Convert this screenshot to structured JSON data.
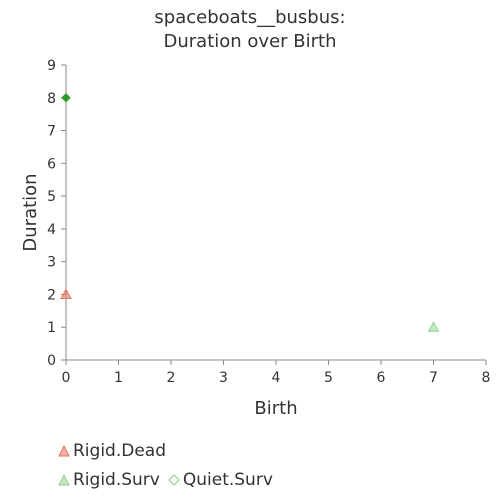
{
  "chart_data": {
    "type": "scatter",
    "title_lines": [
      "spaceboats__busbus:",
      "Duration over Birth"
    ],
    "xlabel": "Birth",
    "ylabel": "Duration",
    "xlim": [
      0,
      8
    ],
    "ylim": [
      0,
      9
    ],
    "x_ticks": [
      "0",
      "1",
      "2",
      "3",
      "4",
      "5",
      "6",
      "7",
      "8"
    ],
    "y_ticks": [
      "0",
      "1",
      "2",
      "3",
      "4",
      "5",
      "6",
      "7",
      "8",
      "9"
    ],
    "grid": false,
    "legend_position": "bottom-left",
    "series": [
      {
        "name": "Rigid.Dead",
        "marker": "triangle",
        "color": "#e8735a",
        "points": [
          {
            "x": 0,
            "y": 2
          }
        ]
      },
      {
        "name": "Rigid.Surv",
        "marker": "triangle",
        "color": "#8fd38f",
        "points": [
          {
            "x": 7,
            "y": 1
          }
        ]
      },
      {
        "name": "Quiet.Surv",
        "marker": "diamond",
        "color": "#2e9a2e",
        "points": [
          {
            "x": 0,
            "y": 8
          }
        ]
      }
    ]
  }
}
